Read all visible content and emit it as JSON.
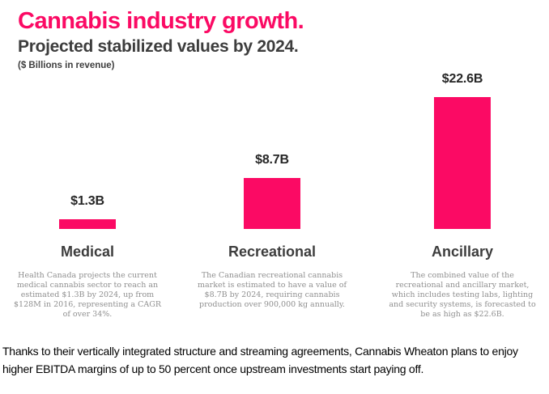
{
  "accent_color": "#FB0A64",
  "header": {
    "title": "Cannabis industry growth.",
    "subtitle": "Projected stabilized values by 2024.",
    "unit_note": "($ Billions in revenue)"
  },
  "chart_data": {
    "type": "bar",
    "title": "Cannabis industry growth.",
    "subtitle": "Projected stabilized values by 2024.",
    "ylabel": "$ Billions in revenue",
    "xlabel": "",
    "categories": [
      "Medical",
      "Recreational",
      "Ancillary"
    ],
    "values": [
      1.3,
      8.7,
      22.6
    ],
    "value_labels": [
      "$1.3B",
      "$8.7B",
      "$22.6B"
    ],
    "bar_color": "#FB0A64",
    "label_color": "#262626",
    "ylim": [
      0,
      24
    ],
    "grid": false,
    "legend": false,
    "descriptions": [
      "Health Canada projects the current medical cannabis sector to reach an estimated $1.3B by 2024, up from $128M in 2016, representing a CAGR of over 34%.",
      "The Canadian recreational cannabis market is estimated to have a value of $8.7B by 2024, requiring cannabis production over 900,000 kg annually.",
      "The combined value of the recreational and ancillary market, which includes testing labs, lighting and security systems, is forecasted to be as high as $22.6B."
    ]
  },
  "footer": {
    "caption": "Thanks to their vertically integrated structure and streaming agreements, Cannabis Wheaton plans to enjoy higher EBITDA margins of up to 50 percent once upstream investments start paying off."
  }
}
